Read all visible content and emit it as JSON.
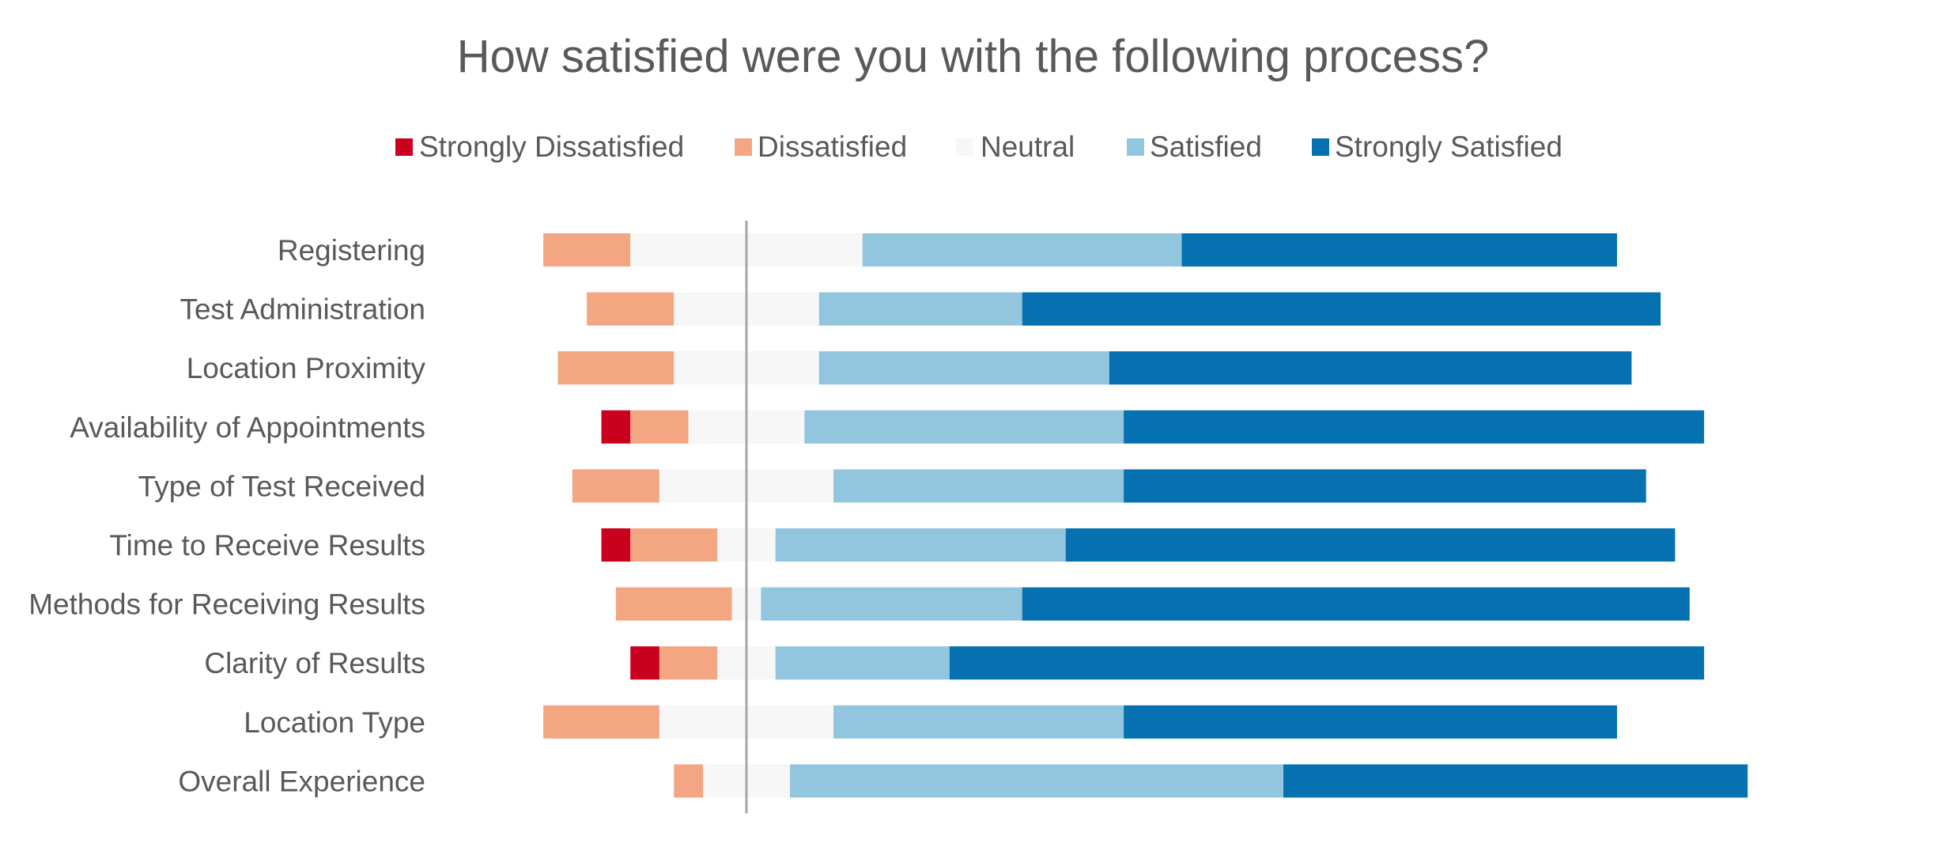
{
  "chart_data": {
    "type": "bar",
    "orientation": "horizontal",
    "stacking": "diverging",
    "title": "How satisfied were you with the following process?",
    "categories": [
      "Registering",
      "Test Administration",
      "Location Proximity",
      "Availability of Appointments",
      "Type of Test Received",
      "Time to Receive Results",
      "Methods for Receiving Results",
      "Clarity of Results",
      "Location Type",
      "Overall Experience"
    ],
    "series": [
      {
        "name": "Strongly Dissatisfied",
        "color": "#C9001E",
        "values": [
          0,
          0,
          0,
          2,
          0,
          2,
          0,
          2,
          0,
          0
        ]
      },
      {
        "name": "Dissatisfied",
        "color": "#F4A582",
        "values": [
          6,
          6,
          8,
          4,
          6,
          6,
          8,
          4,
          8,
          2
        ]
      },
      {
        "name": "Neutral",
        "color": "#F7F7F7",
        "values": [
          16,
          10,
          10,
          8,
          12,
          4,
          2,
          4,
          12,
          6
        ]
      },
      {
        "name": "Satisfied",
        "color": "#92C5DE",
        "values": [
          22,
          14,
          20,
          22,
          20,
          20,
          18,
          12,
          20,
          34
        ]
      },
      {
        "name": "Strongly Satisfied",
        "color": "#0571B0",
        "values": [
          30,
          44,
          36,
          40,
          36,
          42,
          46,
          52,
          34,
          32
        ]
      }
    ],
    "neutral_split": "center",
    "legend_position": "top",
    "grid": false,
    "xlabel": "",
    "ylabel": "",
    "axis_line_color": "#A6A6A6"
  }
}
